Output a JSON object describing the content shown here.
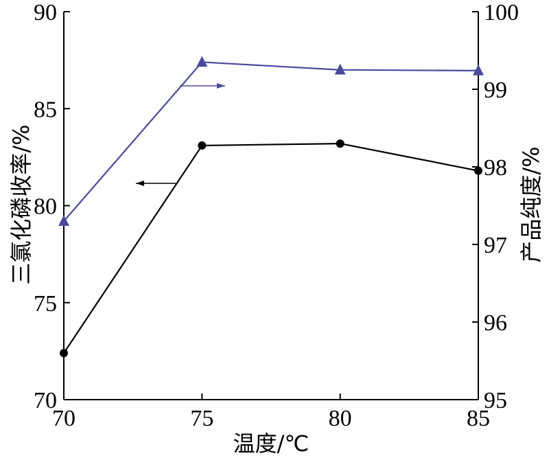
{
  "chart_data": {
    "type": "line",
    "xlabel": "温度/℃",
    "ylabel_left": "三氯化磷收率/%",
    "ylabel_right": "产品纯度/%",
    "x": [
      70,
      75,
      80,
      85
    ],
    "xlim": [
      70,
      85
    ],
    "xticks": [
      "70",
      "75",
      "80",
      "85"
    ],
    "ylim_left": [
      70,
      90
    ],
    "yticks_left": [
      "70",
      "75",
      "80",
      "85",
      "90"
    ],
    "ylim_right": [
      95,
      100
    ],
    "yticks_right": [
      "95",
      "96",
      "97",
      "98",
      "99",
      "100"
    ],
    "grid": false,
    "series": [
      {
        "axis": "left",
        "marker": "circle",
        "color": "#000000",
        "values": [
          72.4,
          83.1,
          83.2,
          81.8
        ]
      },
      {
        "axis": "right",
        "marker": "triangle",
        "color": "#4a4a9c",
        "values": [
          97.3,
          99.35,
          99.25,
          99.24
        ]
      }
    ],
    "annotations": [
      {
        "type": "arrow",
        "direction": "left",
        "series_index": 0,
        "color": "#000000"
      },
      {
        "type": "arrow",
        "direction": "right",
        "series_index": 1,
        "color": "#4a4a9c"
      }
    ]
  }
}
